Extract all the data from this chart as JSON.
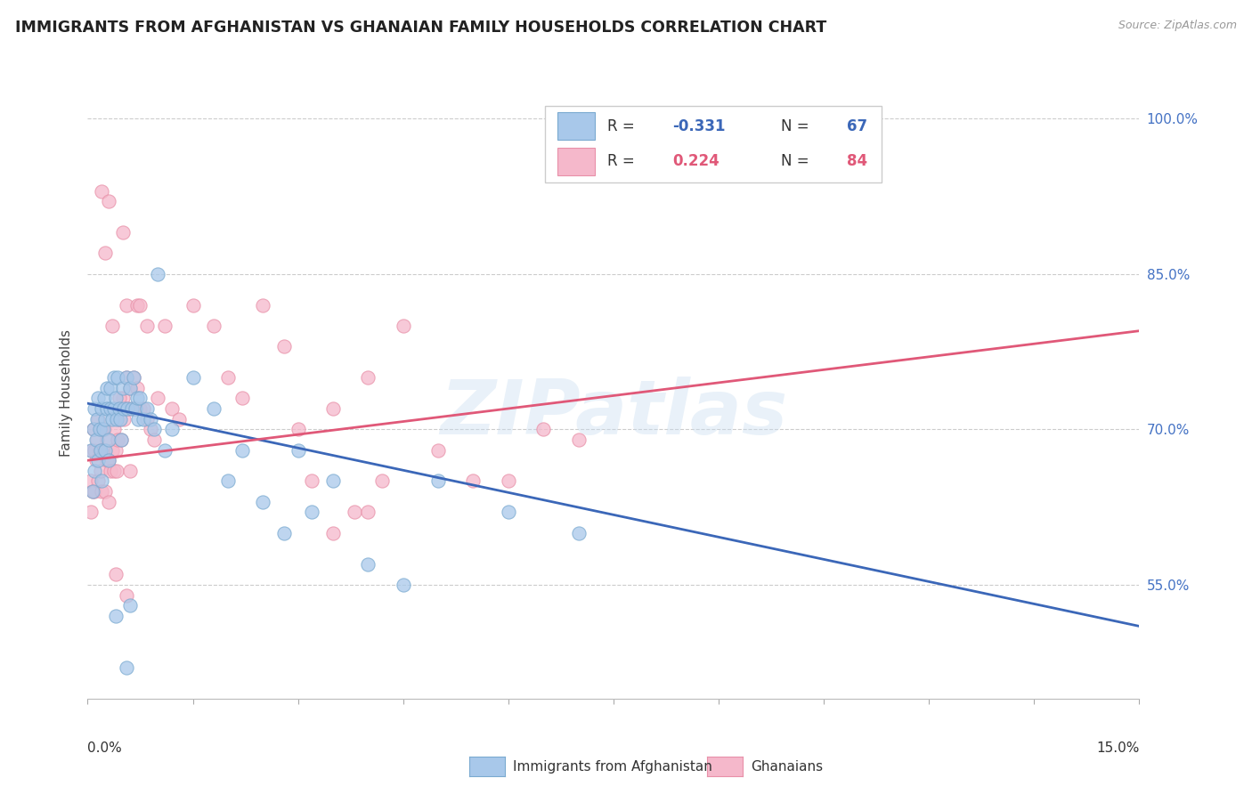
{
  "title": "IMMIGRANTS FROM AFGHANISTAN VS GHANAIAN FAMILY HOUSEHOLDS CORRELATION CHART",
  "source": "Source: ZipAtlas.com",
  "ylabel": "Family Households",
  "xmin": 0.0,
  "xmax": 15.0,
  "ymin": 44.0,
  "ymax": 103.0,
  "yticks": [
    55.0,
    70.0,
    85.0,
    100.0
  ],
  "ytick_labels": [
    "55.0%",
    "70.0%",
    "85.0%",
    "100.0%"
  ],
  "watermark": "ZIPatlas",
  "blue_color": "#a8c8ea",
  "pink_color": "#f5b8cb",
  "blue_edge_color": "#7aaad0",
  "pink_edge_color": "#e890a8",
  "blue_line_color": "#3b67b8",
  "pink_line_color": "#e05878",
  "blue_trend_y0": 72.5,
  "blue_trend_y1": 51.0,
  "pink_trend_y0": 67.0,
  "pink_trend_y1": 79.5,
  "blue_x": [
    0.05,
    0.07,
    0.08,
    0.1,
    0.1,
    0.12,
    0.13,
    0.15,
    0.15,
    0.17,
    0.18,
    0.2,
    0.2,
    0.22,
    0.23,
    0.25,
    0.25,
    0.27,
    0.28,
    0.3,
    0.3,
    0.32,
    0.33,
    0.35,
    0.37,
    0.38,
    0.4,
    0.42,
    0.43,
    0.45,
    0.47,
    0.48,
    0.5,
    0.52,
    0.55,
    0.57,
    0.6,
    0.63,
    0.65,
    0.68,
    0.7,
    0.72,
    0.75,
    0.8,
    0.85,
    0.9,
    0.95,
    1.0,
    1.1,
    1.2,
    1.5,
    1.8,
    2.0,
    2.5,
    3.0,
    3.5,
    4.0,
    5.0,
    6.0,
    7.0,
    2.2,
    2.8,
    3.2,
    4.5,
    0.6,
    0.4,
    0.55
  ],
  "blue_y": [
    68,
    64,
    70,
    72,
    66,
    69,
    71,
    73,
    67,
    70,
    68,
    72,
    65,
    70,
    73,
    71,
    68,
    72,
    74,
    69,
    67,
    72,
    74,
    71,
    75,
    72,
    73,
    71,
    75,
    72,
    71,
    69,
    74,
    72,
    75,
    72,
    74,
    72,
    75,
    72,
    73,
    71,
    73,
    71,
    72,
    71,
    70,
    85,
    68,
    70,
    75,
    72,
    65,
    63,
    68,
    65,
    57,
    65,
    62,
    60,
    68,
    60,
    62,
    55,
    53,
    52,
    47
  ],
  "pink_x": [
    0.04,
    0.05,
    0.06,
    0.07,
    0.08,
    0.1,
    0.1,
    0.12,
    0.13,
    0.15,
    0.15,
    0.17,
    0.18,
    0.2,
    0.2,
    0.22,
    0.23,
    0.25,
    0.25,
    0.27,
    0.28,
    0.3,
    0.3,
    0.32,
    0.35,
    0.37,
    0.38,
    0.4,
    0.42,
    0.43,
    0.45,
    0.48,
    0.5,
    0.52,
    0.55,
    0.57,
    0.6,
    0.63,
    0.65,
    0.68,
    0.7,
    0.75,
    0.8,
    0.85,
    0.9,
    0.95,
    1.0,
    1.1,
    1.2,
    1.3,
    1.5,
    1.8,
    2.0,
    2.5,
    3.0,
    3.2,
    3.5,
    4.0,
    4.5,
    5.0,
    0.35,
    0.45,
    0.55,
    0.65,
    0.7,
    2.2,
    2.8,
    3.8,
    4.2,
    5.5,
    6.0,
    6.5,
    7.0,
    0.2,
    0.25,
    0.3,
    0.5,
    0.6,
    0.75,
    0.85,
    0.4,
    0.55,
    3.5,
    4.0
  ],
  "pink_y": [
    65,
    62,
    68,
    64,
    70,
    68,
    64,
    67,
    69,
    71,
    65,
    68,
    66,
    70,
    64,
    68,
    70,
    68,
    64,
    67,
    69,
    67,
    63,
    66,
    68,
    66,
    70,
    68,
    66,
    69,
    71,
    69,
    73,
    71,
    75,
    72,
    74,
    72,
    75,
    72,
    74,
    72,
    72,
    71,
    70,
    69,
    73,
    80,
    72,
    71,
    82,
    80,
    75,
    82,
    70,
    65,
    72,
    75,
    80,
    68,
    80,
    73,
    82,
    72,
    82,
    73,
    78,
    62,
    65,
    65,
    65,
    70,
    69,
    93,
    87,
    92,
    89,
    66,
    82,
    80,
    56,
    54,
    60,
    62
  ]
}
